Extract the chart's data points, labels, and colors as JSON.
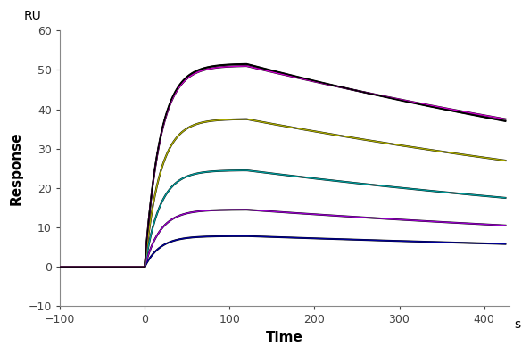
{
  "xlabel": "Time",
  "ylabel": "Response",
  "xlabel_unit": "s",
  "ylabel_unit": "RU",
  "xlim": [
    -100,
    430
  ],
  "ylim": [
    -10,
    60
  ],
  "xticks": [
    -100,
    0,
    100,
    200,
    300,
    400
  ],
  "yticks": [
    -10,
    0,
    10,
    20,
    30,
    40,
    50,
    60
  ],
  "baseline_start": -60,
  "association_start": 0,
  "association_end": 120,
  "dissociation_end": 425,
  "curves": [
    {
      "color": "#000099",
      "peak": 7.8,
      "final": 5.8
    },
    {
      "color": "#9900cc",
      "peak": 14.5,
      "final": 10.5
    },
    {
      "color": "#009999",
      "peak": 24.5,
      "final": 17.5
    },
    {
      "color": "#aaaa00",
      "peak": 37.5,
      "final": 27.0
    },
    {
      "color": "#cc00cc",
      "peak": 51.0,
      "final": 37.5
    },
    {
      "color": "#000000",
      "peak": 51.5,
      "final": 37.0
    }
  ],
  "background_color": "#ffffff",
  "figsize": [
    5.94,
    3.97
  ],
  "dpi": 100
}
